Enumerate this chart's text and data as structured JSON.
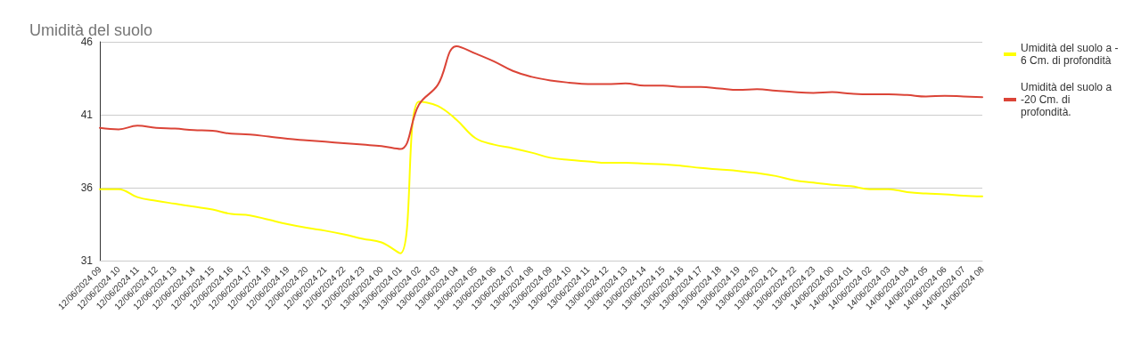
{
  "chart_data": {
    "type": "line",
    "title": "Umidità del suolo",
    "categories": [
      "12/06/2024 09",
      "12/06/2024 10",
      "12/06/2024 11",
      "12/06/2024 12",
      "12/06/2024 13",
      "12/06/2024 14",
      "12/06/2024 15",
      "12/06/2024 16",
      "12/06/2024 17",
      "12/06/2024 18",
      "12/06/2024 19",
      "12/06/2024 20",
      "12/06/2024 21",
      "12/06/2024 22",
      "12/06/2024 23",
      "13/06/2024 00",
      "13/06/2024 01",
      "13/06/2024 02",
      "13/06/2024 03",
      "13/06/2024 04",
      "13/06/2024 05",
      "13/06/2024 06",
      "13/06/2024 07",
      "13/06/2024 08",
      "13/06/2024 09",
      "13/06/2024 10",
      "13/06/2024 11",
      "13/06/2024 12",
      "13/06/2024 13",
      "13/06/2024 14",
      "13/06/2024 15",
      "13/06/2024 16",
      "13/06/2024 17",
      "13/06/2024 18",
      "13/06/2024 19",
      "13/06/2024 20",
      "13/06/2024 21",
      "13/06/2024 22",
      "13/06/2024 23",
      "14/06/2024 00",
      "14/06/2024 01",
      "14/06/2024 02",
      "14/06/2024 03",
      "14/06/2024 04",
      "14/06/2024 05",
      "14/06/2024 06",
      "14/06/2024 07",
      "14/06/2024 08"
    ],
    "series": [
      {
        "name": "Umidità del suolo a - 6 Cm. di profondità",
        "color": "#ffff00",
        "values": [
          35.9,
          35.9,
          35.35,
          35.1,
          34.9,
          34.7,
          34.5,
          34.2,
          34.1,
          33.8,
          33.5,
          33.25,
          33.05,
          32.8,
          32.5,
          32.25,
          31.5,
          41.9,
          41.6,
          40.65,
          39.4,
          38.95,
          38.7,
          38.4,
          38.05,
          37.9,
          37.8,
          37.7,
          37.7,
          37.65,
          37.6,
          37.5,
          37.35,
          37.25,
          37.15,
          37.0,
          36.8,
          36.5,
          36.35,
          36.2,
          36.1,
          35.9,
          35.9,
          35.7,
          35.6,
          35.55,
          35.45,
          35.4
        ]
      },
      {
        "name": "Umidità del suolo a -20 Cm. di profondità.",
        "color": "#db4437",
        "values": [
          40.1,
          40.0,
          40.25,
          40.1,
          40.05,
          39.95,
          39.9,
          39.7,
          39.65,
          39.5,
          39.35,
          39.25,
          39.15,
          39.05,
          38.95,
          38.85,
          38.65,
          41.7,
          43.05,
          45.7,
          45.2,
          44.65,
          44.0,
          43.6,
          43.35,
          43.2,
          43.1,
          43.1,
          43.15,
          43.0,
          43.0,
          42.9,
          42.9,
          42.8,
          42.7,
          42.75,
          42.65,
          42.55,
          42.5,
          42.55,
          42.45,
          42.4,
          42.4,
          42.35,
          42.25,
          42.3,
          42.25,
          42.2
        ]
      }
    ],
    "ylim": [
      31,
      46
    ],
    "yticks": [
      31,
      36,
      41,
      46
    ],
    "grid": "y",
    "legend": "right",
    "marker": "none",
    "line_style": "solid"
  }
}
